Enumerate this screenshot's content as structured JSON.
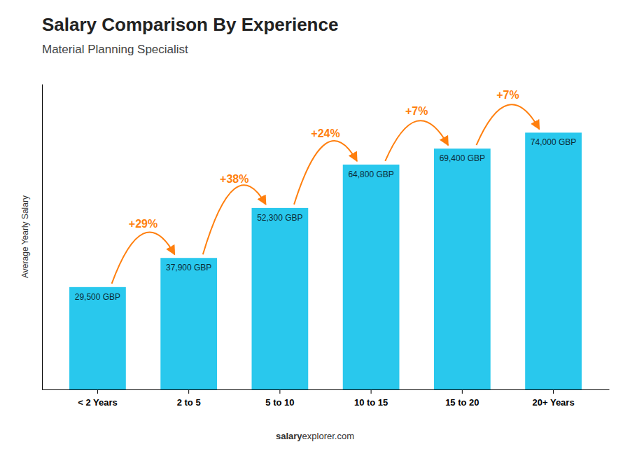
{
  "chart_data": {
    "type": "bar",
    "title": "Salary Comparison By Experience",
    "subtitle": "Material Planning Specialist",
    "categories": [
      "< 2 Years",
      "2 to 5",
      "5 to 10",
      "10 to 15",
      "15 to 20",
      "20+ Years"
    ],
    "values": [
      29500,
      37900,
      52300,
      64800,
      69400,
      74000
    ],
    "value_labels": [
      "29,500 GBP",
      "37,900 GBP",
      "52,300 GBP",
      "64,800 GBP",
      "69,400 GBP",
      "74,000 GBP"
    ],
    "data_labels": true,
    "color": "#29c8ed",
    "ylabel": "Average Yearly Salary",
    "ylim": [
      0,
      88000
    ],
    "tick_labels": "x",
    "annotations": [
      "+29%",
      "+38%",
      "+24%",
      "+7%",
      "+7%"
    ],
    "footer": [
      "salary",
      "explorer.com"
    ]
  }
}
